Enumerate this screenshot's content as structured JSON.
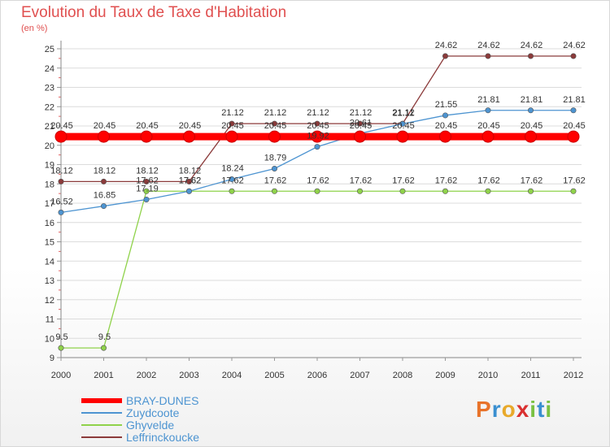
{
  "chart_data": {
    "type": "line",
    "title": "Evolution du Taux de Taxe d'Habitation",
    "subtitle": "(en %)",
    "categories": [
      "2000",
      "2001",
      "2002",
      "2003",
      "2004",
      "2005",
      "2006",
      "2007",
      "2008",
      "2009",
      "2010",
      "2011",
      "2012"
    ],
    "ylim": [
      9,
      25
    ],
    "yticks": [
      "9",
      "10",
      "11",
      "12",
      "13",
      "14",
      "15",
      "16",
      "17",
      "18",
      "19",
      "20",
      "21",
      "22",
      "23",
      "24",
      "25"
    ],
    "series": [
      {
        "name": "BRAY-DUNES",
        "color": "#ff0000",
        "values": [
          20.45,
          20.45,
          20.45,
          20.45,
          20.45,
          20.45,
          20.45,
          20.45,
          20.45,
          20.45,
          20.45,
          20.45,
          20.45
        ],
        "labels": [
          "20.45",
          "20.45",
          "20.45",
          "20.45",
          "20.45",
          "20.45",
          "20.45",
          "20.45",
          "20.45",
          "20.45",
          "20.45",
          "20.45",
          "20.45"
        ]
      },
      {
        "name": "Zuydcoote",
        "color": "#4d94d1",
        "values": [
          16.52,
          16.85,
          17.19,
          17.62,
          18.24,
          18.79,
          19.92,
          20.61,
          21.11,
          21.55,
          21.81,
          21.81,
          21.81
        ],
        "labels": [
          "16.52",
          "16.85",
          "17.19",
          "17.62",
          "18.24",
          "18.79",
          "19.92",
          "20.61",
          "21.11",
          "21.55",
          "21.81",
          "21.81",
          "21.81"
        ]
      },
      {
        "name": "Ghyvelde",
        "color": "#8fd24a",
        "values": [
          9.5,
          9.5,
          17.62,
          17.62,
          17.62,
          17.62,
          17.62,
          17.62,
          17.62,
          17.62,
          17.62,
          17.62,
          17.62
        ],
        "labels": [
          "9.5",
          "9.5",
          "17.62",
          "17.62",
          "17.62",
          "17.62",
          "17.62",
          "17.62",
          "17.62",
          "17.62",
          "17.62",
          "17.62",
          "17.62"
        ]
      },
      {
        "name": "Leffrinckoucke",
        "color": "#8b3a3a",
        "values": [
          18.12,
          18.12,
          18.12,
          18.12,
          21.12,
          21.12,
          21.12,
          21.12,
          21.12,
          24.62,
          24.62,
          24.62,
          24.62
        ],
        "labels": [
          "18.12",
          "18.12",
          "18.12",
          "18.12",
          "21.12",
          "21.12",
          "21.12",
          "21.12",
          "21.12",
          "24.62",
          "24.62",
          "24.62",
          "24.62"
        ]
      }
    ]
  },
  "logo": {
    "text": "Proxiti",
    "letters": [
      "P",
      "r",
      "o",
      "x",
      "i",
      "t",
      "i"
    ]
  }
}
